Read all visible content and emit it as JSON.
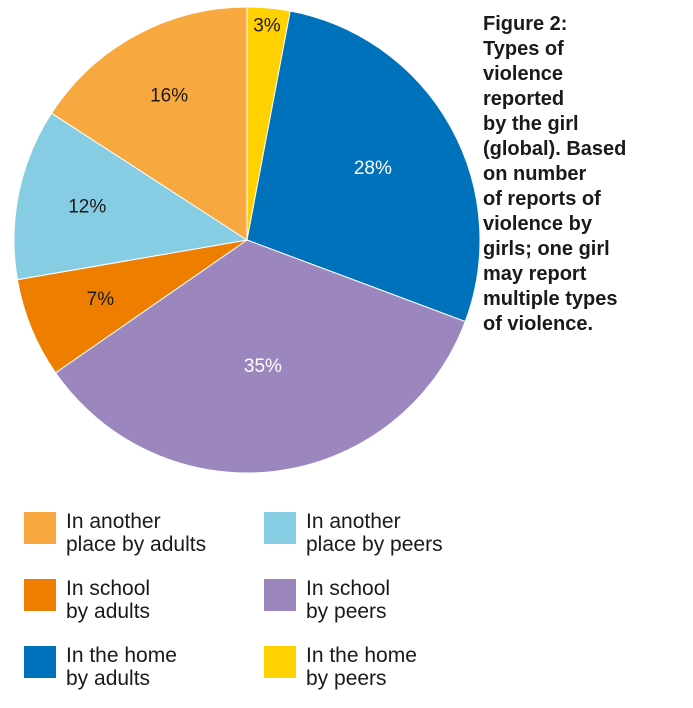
{
  "caption": "Figure 2:\nTypes of\nviolence\nreported\nby the girl\n(global). Based\non number\nof reports of\nviolence by\ngirls; one girl\nmay report\nmultiple types\nof violence.",
  "chart_data": {
    "type": "pie",
    "title": "",
    "start_angle_deg": 0,
    "direction": "clockwise",
    "slices": [
      {
        "label": "In the home\nby peers",
        "value": 3,
        "display": "3%",
        "color": "#FFD100",
        "label_color": "#1a1a1a"
      },
      {
        "label": "In the home\nby adults",
        "value": 28,
        "display": "28%",
        "color": "#0072BC",
        "label_color": "#ffffff"
      },
      {
        "label": "In school\nby peers",
        "value": 35,
        "display": "35%",
        "color": "#9B87BE",
        "label_color": "#ffffff"
      },
      {
        "label": "In school\nby adults",
        "value": 7,
        "display": "7%",
        "color": "#EE7E00",
        "label_color": "#1a1a1a"
      },
      {
        "label": "In another\nplace by peers",
        "value": 12,
        "display": "12%",
        "color": "#86CDE3",
        "label_color": "#1a1a1a"
      },
      {
        "label": "In another\nplace by adults",
        "value": 16,
        "display": "16%",
        "color": "#F7A940",
        "label_color": "#1a1a1a"
      }
    ]
  },
  "legend": {
    "placement": "bottom",
    "items": [
      {
        "slice": 5
      },
      {
        "slice": 4
      },
      {
        "slice": 3
      },
      {
        "slice": 2
      },
      {
        "slice": 1
      },
      {
        "slice": 0
      }
    ]
  }
}
